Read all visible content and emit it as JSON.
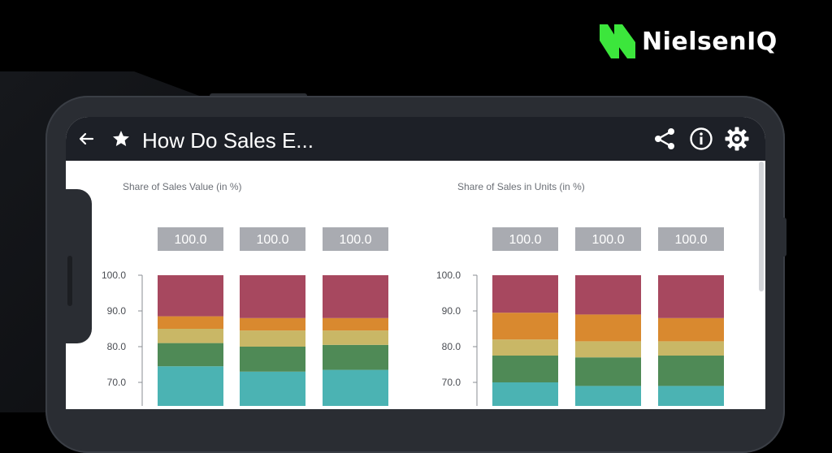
{
  "brand": {
    "name": "NielsenIQ",
    "logo_color": "#3ce63c"
  },
  "app": {
    "title": "How Do Sales E...",
    "icons": [
      "back-arrow-icon",
      "star-icon",
      "share-icon",
      "info-icon",
      "settings-icon"
    ]
  },
  "colors": {
    "appbar": "#1d2027",
    "segments": [
      "#4bb3b3",
      "#4f8a56",
      "#c9b766",
      "#d9892f",
      "#a7485f"
    ],
    "total_box": "#a9abb1"
  },
  "chart_data": [
    {
      "type": "bar",
      "title": "Share of Sales Value (in %)",
      "stacked": true,
      "ylim_visible": [
        70,
        100
      ],
      "y_ticks": [
        "100.0",
        "90.0",
        "80.0",
        "70.0"
      ],
      "totals": [
        "100.0",
        "100.0",
        "100.0"
      ],
      "series": [
        {
          "values": [
            74.5,
            73.0,
            73.5
          ]
        },
        {
          "values": [
            6.5,
            7.0,
            7.0
          ]
        },
        {
          "values": [
            4.0,
            4.5,
            4.0
          ]
        },
        {
          "values": [
            3.5,
            3.5,
            3.5
          ]
        },
        {
          "values": [
            11.5,
            12.0,
            12.0
          ]
        }
      ]
    },
    {
      "type": "bar",
      "title": "Share of Sales in Units (in %)",
      "stacked": true,
      "ylim_visible": [
        70,
        100
      ],
      "y_ticks": [
        "100.0",
        "90.0",
        "80.0",
        "70.0"
      ],
      "totals": [
        "100.0",
        "100.0",
        "100.0"
      ],
      "series": [
        {
          "values": [
            70.0,
            69.0,
            69.0
          ]
        },
        {
          "values": [
            7.5,
            8.0,
            8.5
          ]
        },
        {
          "values": [
            4.5,
            4.5,
            4.0
          ]
        },
        {
          "values": [
            7.5,
            7.5,
            6.5
          ]
        },
        {
          "values": [
            10.5,
            11.0,
            12.0
          ]
        }
      ]
    }
  ]
}
